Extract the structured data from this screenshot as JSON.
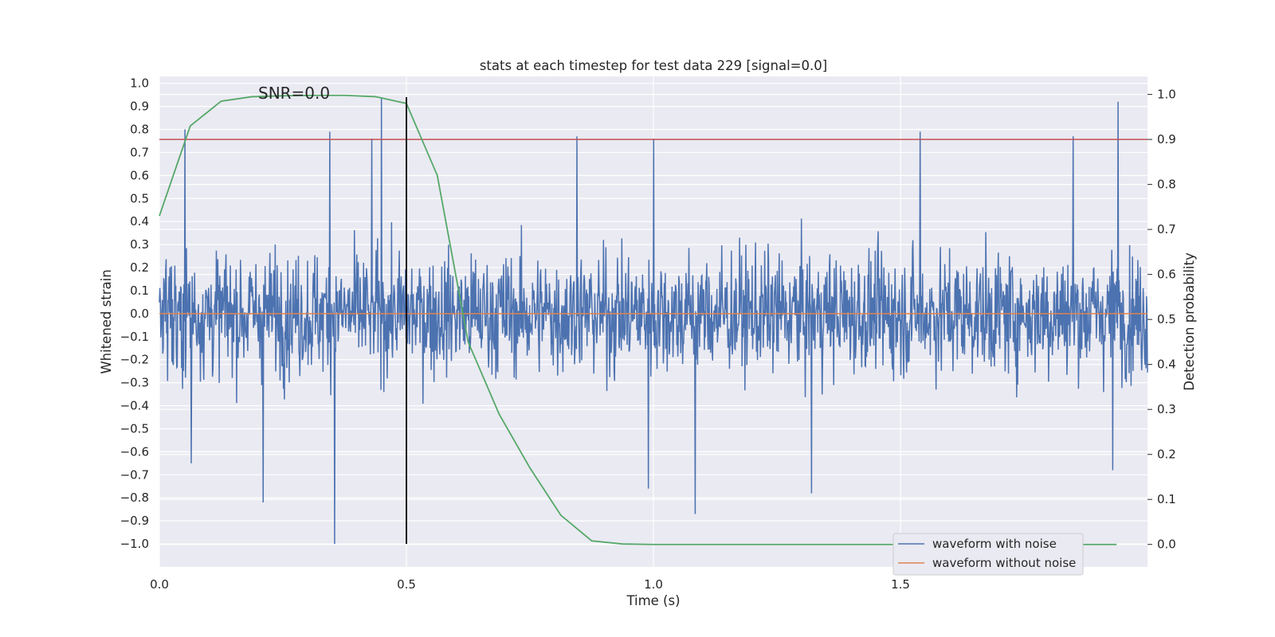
{
  "chart_data": {
    "type": "line",
    "title": "stats at each timestep for test data 229 [signal=0.0]",
    "xlabel": "Time (s)",
    "ylabel": "Whitened strain",
    "y2label": "Detection probability",
    "xlim": [
      0.0,
      2.0
    ],
    "ylim": [
      -1.1,
      1.03
    ],
    "y2lim": [
      -0.05,
      1.04
    ],
    "x_ticks": [
      "0.0",
      "0.5",
      "1.0",
      "1.5"
    ],
    "x_tick_values": [
      0.0,
      0.5,
      1.0,
      1.5
    ],
    "y_ticks": [
      "−1.0",
      "−0.9",
      "−0.8",
      "−0.7",
      "−0.6",
      "−0.5",
      "−0.4",
      "−0.3",
      "−0.2",
      "−0.1",
      "0.0",
      "0.1",
      "0.2",
      "0.3",
      "0.4",
      "0.5",
      "0.6",
      "0.7",
      "0.8",
      "0.9",
      "1.0"
    ],
    "y_tick_values": [
      -1.0,
      -0.9,
      -0.8,
      -0.7,
      -0.6,
      -0.5,
      -0.4,
      -0.3,
      -0.2,
      -0.1,
      0.0,
      0.1,
      0.2,
      0.3,
      0.4,
      0.5,
      0.6,
      0.7,
      0.8,
      0.9,
      1.0
    ],
    "y2_ticks": [
      "0.0",
      "0.1",
      "0.2",
      "0.3",
      "0.4",
      "0.5",
      "0.6",
      "0.7",
      "0.8",
      "0.9",
      "1.0"
    ],
    "y2_tick_values": [
      0.0,
      0.1,
      0.2,
      0.3,
      0.4,
      0.5,
      0.6,
      0.7,
      0.8,
      0.9,
      1.0
    ],
    "grid": true,
    "annotation": "SNR=0.0",
    "annotation_position": "top-left",
    "legend_position": "bottom-right",
    "series": [
      {
        "name": "waveform with noise",
        "axis": "left",
        "color": "#4c72b0",
        "note_samples": 2048,
        "envelope": 0.45,
        "spikes": [
          {
            "x": 0.052,
            "y": 0.8
          },
          {
            "x": 0.064,
            "y": -0.65
          },
          {
            "x": 0.21,
            "y": -0.82
          },
          {
            "x": 0.345,
            "y": 0.79
          },
          {
            "x": 0.355,
            "y": -1.0
          },
          {
            "x": 0.43,
            "y": 0.76
          },
          {
            "x": 0.449,
            "y": 0.94
          },
          {
            "x": 0.845,
            "y": 0.77
          },
          {
            "x": 0.99,
            "y": -0.76
          },
          {
            "x": 1.0,
            "y": 0.76
          },
          {
            "x": 1.085,
            "y": -0.87
          },
          {
            "x": 1.32,
            "y": -0.78
          },
          {
            "x": 1.54,
            "y": 0.79
          },
          {
            "x": 1.85,
            "y": 0.77
          },
          {
            "x": 1.94,
            "y": 0.92
          },
          {
            "x": 1.93,
            "y": -0.68
          }
        ]
      },
      {
        "name": "waveform without noise",
        "axis": "left",
        "color": "#dd8452",
        "x": [
          0.0,
          2.0
        ],
        "y": [
          0.0,
          0.0
        ]
      },
      {
        "name": "",
        "axis": "right",
        "color": "#55a868",
        "x": [
          0.0,
          0.0625,
          0.125,
          0.1875,
          0.25,
          0.3125,
          0.375,
          0.4375,
          0.5,
          0.5625,
          0.625,
          0.6875,
          0.75,
          0.8125,
          0.875,
          0.9375,
          1.0,
          1.0625,
          1.125,
          1.1875,
          1.25,
          1.3125,
          1.375,
          1.4375,
          1.5,
          1.5625,
          1.625,
          1.6875,
          1.75,
          1.8125,
          1.875,
          1.9375
        ],
        "y": [
          0.73,
          0.93,
          0.985,
          0.995,
          0.997,
          0.998,
          0.998,
          0.995,
          0.98,
          0.82,
          0.45,
          0.29,
          0.17,
          0.065,
          0.008,
          0.001,
          0.0,
          0.0,
          0.0,
          0.0,
          0.0,
          0.0,
          0.0,
          0.0,
          0.0,
          0.0,
          0.0,
          0.0,
          0.0,
          0.0,
          0.0,
          0.0
        ]
      }
    ],
    "hlines": [
      {
        "axis": "right",
        "y": 0.9,
        "color": "#c44e52"
      }
    ],
    "vlines": [
      {
        "x": 0.5,
        "ymin": -1.0,
        "ymax": 0.94,
        "color": "#000000"
      }
    ]
  }
}
